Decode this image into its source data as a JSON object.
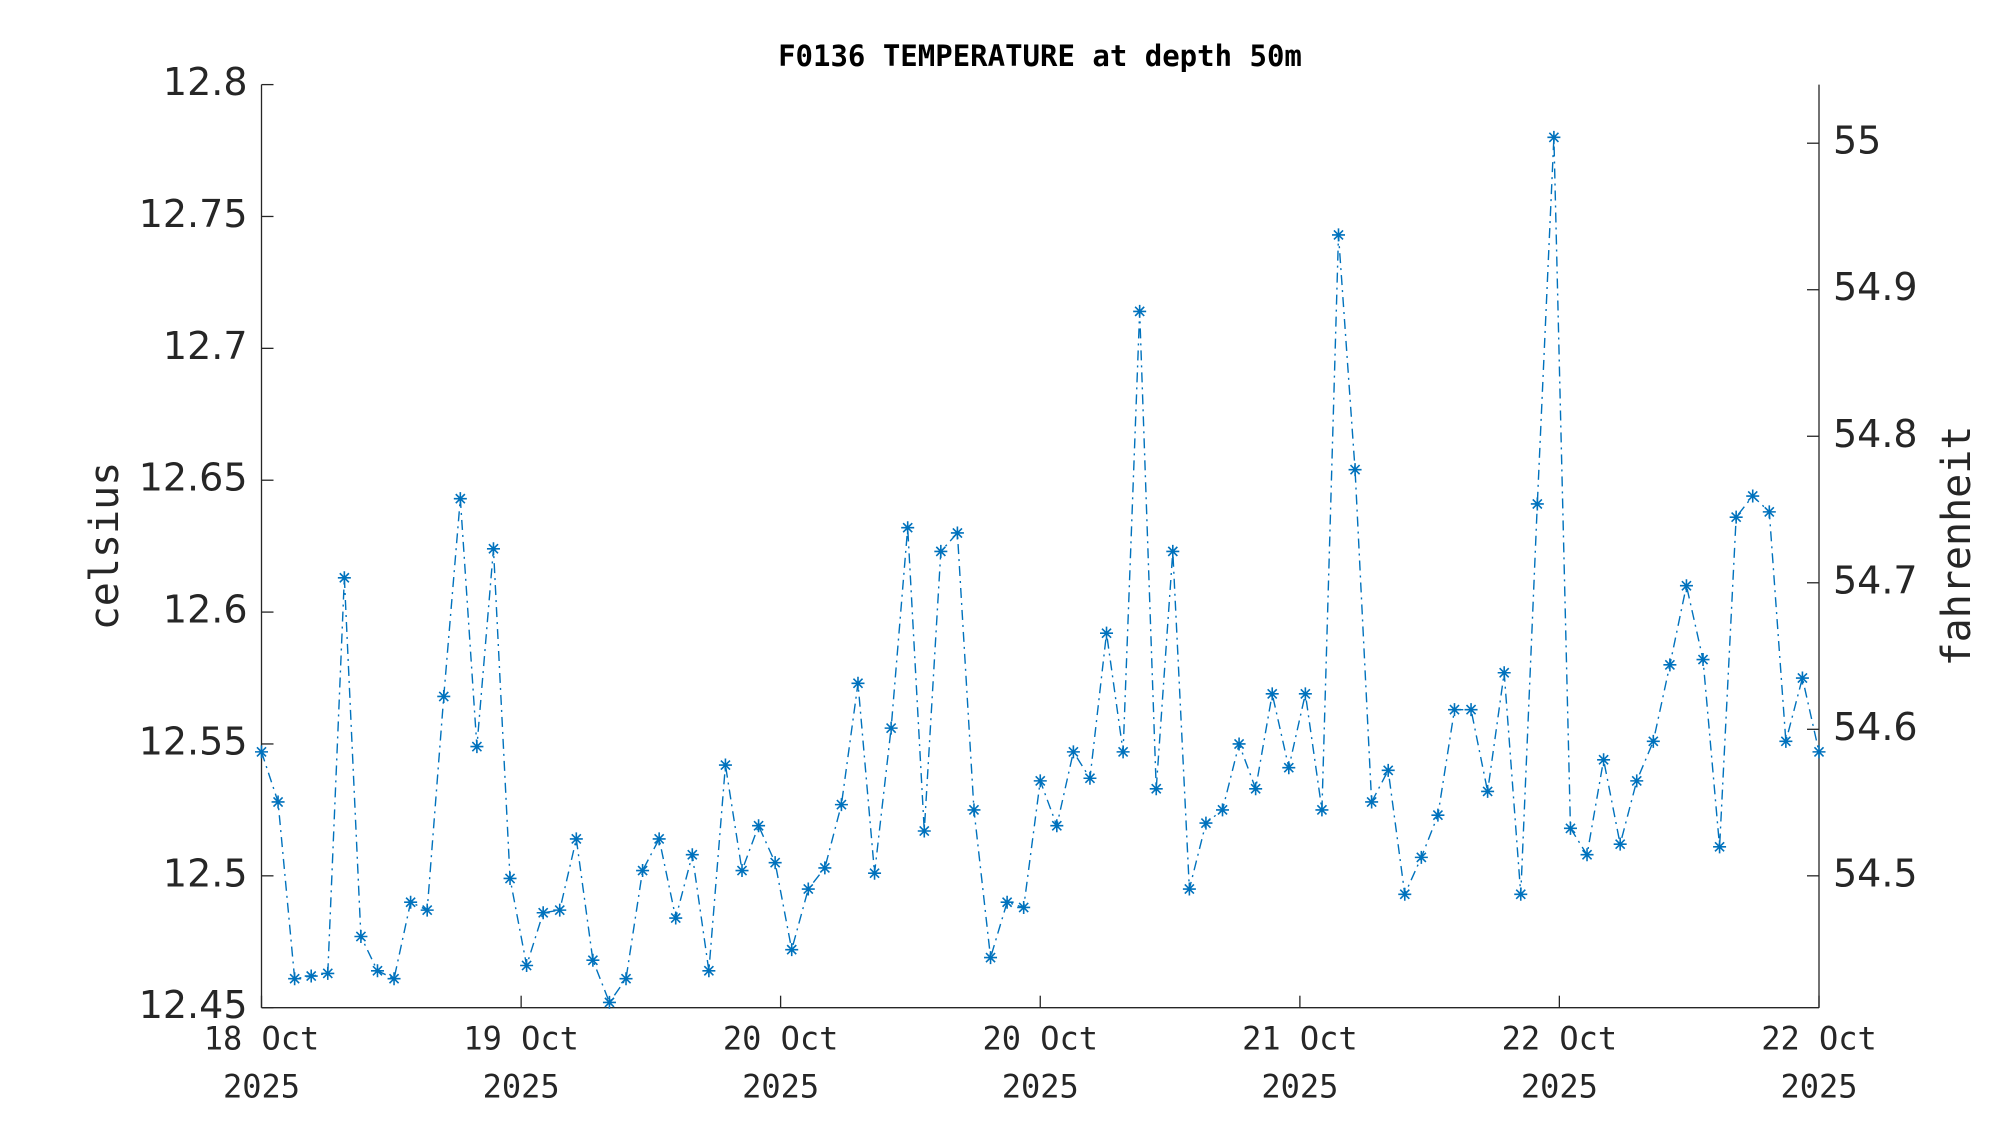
{
  "chart_data": {
    "type": "line",
    "title": "F0136 TEMPERATURE at depth 50m",
    "ylabel": "celsius",
    "y2label": "fahrenheit",
    "color": "#0072bd",
    "x": [
      0,
      1,
      2,
      3,
      4,
      5,
      6,
      7,
      8,
      9,
      10,
      11,
      12,
      13,
      14,
      15,
      16,
      17,
      18,
      19,
      20,
      21,
      22,
      23,
      24,
      25,
      26,
      27,
      28,
      29,
      30,
      31,
      32,
      33,
      34,
      35,
      36,
      37,
      38,
      39,
      40,
      41,
      42,
      43,
      44,
      45,
      46,
      47,
      48,
      49,
      50,
      51,
      52,
      53,
      54,
      55,
      56,
      57,
      58,
      59,
      60,
      61,
      62,
      63,
      64,
      65,
      66,
      67,
      68,
      69,
      70,
      71,
      72,
      73,
      74,
      75,
      76,
      77,
      78,
      79,
      80,
      81,
      82,
      83,
      84,
      85,
      86,
      87,
      88,
      89,
      90,
      91,
      92,
      93,
      94
    ],
    "values": [
      12.547,
      12.528,
      12.461,
      12.462,
      12.463,
      12.613,
      12.477,
      12.464,
      12.461,
      12.49,
      12.487,
      12.568,
      12.643,
      12.549,
      12.624,
      12.499,
      12.466,
      12.486,
      12.487,
      12.514,
      12.468,
      12.452,
      12.461,
      12.502,
      12.514,
      12.484,
      12.508,
      12.464,
      12.542,
      12.502,
      12.519,
      12.505,
      12.472,
      12.495,
      12.503,
      12.527,
      12.573,
      12.501,
      12.556,
      12.632,
      12.517,
      12.623,
      12.63,
      12.525,
      12.469,
      12.49,
      12.488,
      12.536,
      12.519,
      12.547,
      12.537,
      12.592,
      12.547,
      12.714,
      12.533,
      12.623,
      12.495,
      12.52,
      12.525,
      12.55,
      12.533,
      12.569,
      12.541,
      12.569,
      12.525,
      12.743,
      12.654,
      12.528,
      12.54,
      12.493,
      12.507,
      12.523,
      12.563,
      12.563,
      12.532,
      12.577,
      12.493,
      12.641,
      12.78,
      12.518,
      12.508,
      12.544,
      12.512,
      12.536,
      12.551,
      12.58,
      12.61,
      12.582,
      12.511,
      12.636,
      12.644,
      12.638,
      12.551,
      12.575,
      12.547
    ],
    "xlim": [
      0,
      94
    ],
    "xticks": [
      {
        "value": 0,
        "label": "18 Oct 2025"
      },
      {
        "value": 15.67,
        "label": "19 Oct 2025"
      },
      {
        "value": 31.33,
        "label": "20 Oct 2025"
      },
      {
        "value": 47,
        "label": "20 Oct 2025"
      },
      {
        "value": 62.67,
        "label": "21 Oct 2025"
      },
      {
        "value": 78.33,
        "label": "22 Oct 2025"
      },
      {
        "value": 94,
        "label": "22 Oct 2025"
      }
    ],
    "ylim": [
      12.45,
      12.8
    ],
    "yticks": [
      12.45,
      12.5,
      12.55,
      12.6,
      12.65,
      12.7,
      12.75,
      12.8
    ],
    "y2lim": [
      54.41,
      55.04
    ],
    "y2ticks": [
      54.5,
      54.6,
      54.7,
      54.8,
      54.9,
      55
    ]
  }
}
